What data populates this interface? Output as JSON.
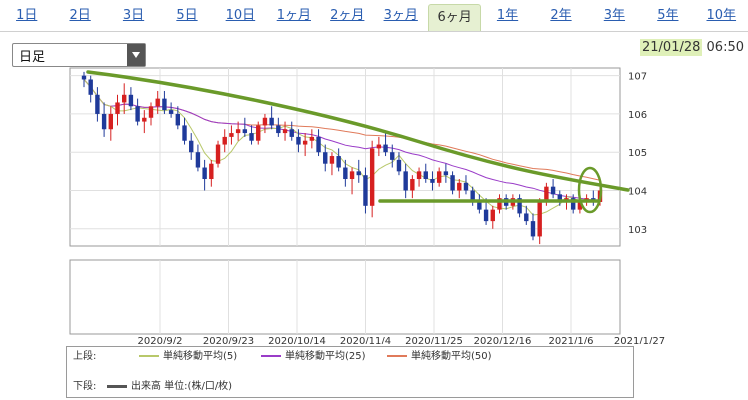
{
  "tabs": [
    {
      "label": "1日",
      "active": false
    },
    {
      "label": "2日",
      "active": false
    },
    {
      "label": "3日",
      "active": false
    },
    {
      "label": "5日",
      "active": false
    },
    {
      "label": "10日",
      "active": false
    },
    {
      "label": "1ヶ月",
      "active": false
    },
    {
      "label": "2ヶ月",
      "active": false
    },
    {
      "label": "3ヶ月",
      "active": false
    },
    {
      "label": "6ヶ月",
      "active": true
    },
    {
      "label": "1年",
      "active": false
    },
    {
      "label": "2年",
      "active": false
    },
    {
      "label": "3年",
      "active": false
    },
    {
      "label": "5年",
      "active": false
    },
    {
      "label": "10年",
      "active": false
    }
  ],
  "period_select": {
    "value": "日足"
  },
  "timestamp": {
    "date": "21/01/28",
    "time": "06:50"
  },
  "legend": {
    "upper_label": "上段:",
    "lower_label": "下段:",
    "ma5": "単純移動平均(5)",
    "ma25": "単純移動平均(25)",
    "ma50": "単純移動平均(50)",
    "volume": "出来高 単位:(株/口/枚)"
  },
  "colors": {
    "up": "#d62020",
    "down": "#1f3a9a",
    "ma5": "#b8c86a",
    "ma25": "#9a3cc8",
    "ma50": "#e07a5a",
    "annotation": "#6a9a2a",
    "volume": "#555555"
  },
  "chart_data": {
    "type": "candlestick",
    "x_tick_labels": [
      "2020/9/2",
      "2020/9/23",
      "2020/10/14",
      "2020/11/4",
      "2020/11/25",
      "2020/12/16",
      "2021/1/6",
      "2021/1/27"
    ],
    "y_ticks": [
      103,
      104,
      105,
      106,
      107
    ],
    "ylim": [
      102.55,
      107.2
    ],
    "candles": [
      [
        107.0,
        107.1,
        106.7,
        106.9
      ],
      [
        106.9,
        107.0,
        106.3,
        106.5
      ],
      [
        106.5,
        106.7,
        105.8,
        106.0
      ],
      [
        106.0,
        106.3,
        105.4,
        105.6
      ],
      [
        105.6,
        106.2,
        105.3,
        106.0
      ],
      [
        106.0,
        106.5,
        105.7,
        106.3
      ],
      [
        106.3,
        106.8,
        106.0,
        106.5
      ],
      [
        106.5,
        106.7,
        106.1,
        106.2
      ],
      [
        106.2,
        106.4,
        105.7,
        105.8
      ],
      [
        105.8,
        106.1,
        105.5,
        105.9
      ],
      [
        105.9,
        106.3,
        105.7,
        106.2
      ],
      [
        106.2,
        106.6,
        106.0,
        106.4
      ],
      [
        106.4,
        106.6,
        106.0,
        106.1
      ],
      [
        106.1,
        106.3,
        105.9,
        106.0
      ],
      [
        106.0,
        106.2,
        105.6,
        105.7
      ],
      [
        105.7,
        105.9,
        105.2,
        105.3
      ],
      [
        105.3,
        105.5,
        104.8,
        105.0
      ],
      [
        105.0,
        105.2,
        104.5,
        104.6
      ],
      [
        104.6,
        104.8,
        104.0,
        104.3
      ],
      [
        104.3,
        104.8,
        104.1,
        104.7
      ],
      [
        104.7,
        105.3,
        104.6,
        105.2
      ],
      [
        105.2,
        105.6,
        105.0,
        105.4
      ],
      [
        105.4,
        105.7,
        105.2,
        105.5
      ],
      [
        105.5,
        105.8,
        105.3,
        105.6
      ],
      [
        105.6,
        105.9,
        105.4,
        105.5
      ],
      [
        105.5,
        105.7,
        105.2,
        105.3
      ],
      [
        105.3,
        105.8,
        105.2,
        105.7
      ],
      [
        105.7,
        106.0,
        105.5,
        105.9
      ],
      [
        105.9,
        106.2,
        105.6,
        105.7
      ],
      [
        105.7,
        105.9,
        105.4,
        105.5
      ],
      [
        105.5,
        105.8,
        105.3,
        105.6
      ],
      [
        105.6,
        105.8,
        105.3,
        105.4
      ],
      [
        105.4,
        105.6,
        105.0,
        105.2
      ],
      [
        105.2,
        105.5,
        104.9,
        105.3
      ],
      [
        105.3,
        105.6,
        105.1,
        105.4
      ],
      [
        105.4,
        105.6,
        104.9,
        105.0
      ],
      [
        105.0,
        105.2,
        104.5,
        104.7
      ],
      [
        104.7,
        105.0,
        104.4,
        104.9
      ],
      [
        104.9,
        105.1,
        104.5,
        104.6
      ],
      [
        104.6,
        104.8,
        104.1,
        104.3
      ],
      [
        104.3,
        104.6,
        103.9,
        104.5
      ],
      [
        104.5,
        104.8,
        104.2,
        104.4
      ],
      [
        104.4,
        104.6,
        103.4,
        103.6
      ],
      [
        103.6,
        105.3,
        103.3,
        105.1
      ],
      [
        105.1,
        105.4,
        104.9,
        105.2
      ],
      [
        105.2,
        105.5,
        104.9,
        105.0
      ],
      [
        105.0,
        105.2,
        104.6,
        104.8
      ],
      [
        104.8,
        105.0,
        104.4,
        104.5
      ],
      [
        104.5,
        104.7,
        103.8,
        104.0
      ],
      [
        104.0,
        104.4,
        103.8,
        104.3
      ],
      [
        104.3,
        104.6,
        104.1,
        104.5
      ],
      [
        104.5,
        104.7,
        104.2,
        104.3
      ],
      [
        104.3,
        104.5,
        104.0,
        104.2
      ],
      [
        104.2,
        104.6,
        104.1,
        104.5
      ],
      [
        104.5,
        104.7,
        104.2,
        104.4
      ],
      [
        104.4,
        104.5,
        103.9,
        104.0
      ],
      [
        104.0,
        104.3,
        103.8,
        104.2
      ],
      [
        104.2,
        104.4,
        103.9,
        104.0
      ],
      [
        104.0,
        104.1,
        103.6,
        103.7
      ],
      [
        103.7,
        103.9,
        103.4,
        103.5
      ],
      [
        103.5,
        103.8,
        103.1,
        103.2
      ],
      [
        103.2,
        103.6,
        103.0,
        103.5
      ],
      [
        103.5,
        103.9,
        103.4,
        103.8
      ],
      [
        103.8,
        103.9,
        103.5,
        103.6
      ],
      [
        103.6,
        103.9,
        103.5,
        103.8
      ],
      [
        103.8,
        103.9,
        103.3,
        103.4
      ],
      [
        103.4,
        103.6,
        103.1,
        103.2
      ],
      [
        103.2,
        103.4,
        102.7,
        102.8
      ],
      [
        102.8,
        103.8,
        102.6,
        103.7
      ],
      [
        103.7,
        104.2,
        103.6,
        104.1
      ],
      [
        104.1,
        104.3,
        103.8,
        103.9
      ],
      [
        103.9,
        104.0,
        103.6,
        103.7
      ],
      [
        103.7,
        103.9,
        103.5,
        103.8
      ],
      [
        103.8,
        103.9,
        103.4,
        103.5
      ],
      [
        103.5,
        103.8,
        103.4,
        103.7
      ],
      [
        103.7,
        103.9,
        103.6,
        103.8
      ],
      [
        103.8,
        104.0,
        103.6,
        103.7
      ],
      [
        103.7,
        104.1,
        103.6,
        104.0
      ]
    ],
    "annotations": [
      "downtrend-line",
      "support-line",
      "ellipse-highlight"
    ]
  }
}
